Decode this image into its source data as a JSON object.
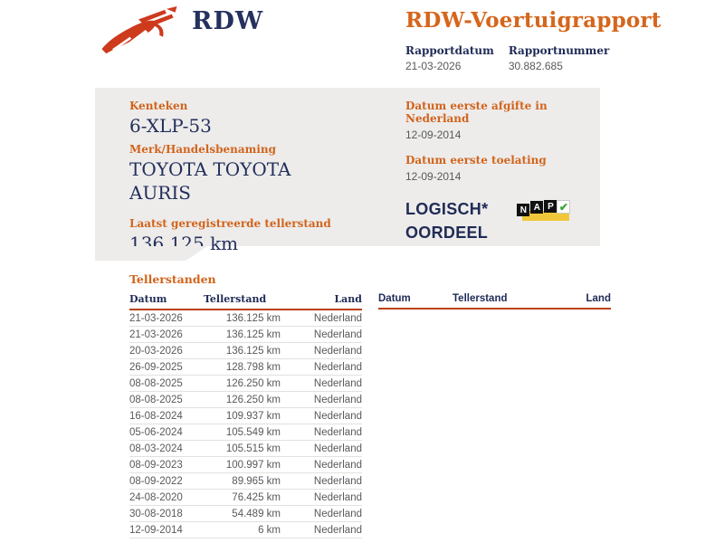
{
  "header": {
    "logo_text": "RDW",
    "title": "RDW-Voertuigrapport",
    "report_date_label": "Rapportdatum",
    "report_date": "21-03-2026",
    "report_number_label": "Rapportnummer",
    "report_number": "30.882.685"
  },
  "summary": {
    "kenteken_label": "Kenteken",
    "kenteken": "6-XLP-53",
    "merk_label": "Merk/Handelsbenaming",
    "merk": "TOYOTA TOYOTA AURIS",
    "tellerstand_label": "Laatst geregistreerde tellerstand",
    "tellerstand": "136.125 km",
    "afgifte_label": "Datum eerste afgifte in Nederland",
    "afgifte": "12-09-2014",
    "toelating_label": "Datum eerste toelating",
    "toelating": "12-09-2014",
    "oordeel_line1": "LOGISCH*",
    "oordeel_line2": "OORDEEL",
    "nap": {
      "n": "N",
      "a": "A",
      "p": "P",
      "check": "✔"
    }
  },
  "tellerstanden": {
    "section_title": "Tellerstanden",
    "columns": [
      "Datum",
      "Tellerstand",
      "Land"
    ],
    "columns_right": [
      "Datum",
      "Tellerstand",
      "Land"
    ],
    "rows": [
      {
        "datum": "21-03-2026",
        "tellerstand": "136.125 km",
        "land": "Nederland"
      },
      {
        "datum": "21-03-2026",
        "tellerstand": "136.125 km",
        "land": "Nederland"
      },
      {
        "datum": "20-03-2026",
        "tellerstand": "136.125 km",
        "land": "Nederland"
      },
      {
        "datum": "26-09-2025",
        "tellerstand": "128.798 km",
        "land": "Nederland"
      },
      {
        "datum": "08-08-2025",
        "tellerstand": "126.250 km",
        "land": "Nederland"
      },
      {
        "datum": "08-08-2025",
        "tellerstand": "126.250 km",
        "land": "Nederland"
      },
      {
        "datum": "16-08-2024",
        "tellerstand": "109.937 km",
        "land": "Nederland"
      },
      {
        "datum": "05-06-2024",
        "tellerstand": "105.549 km",
        "land": "Nederland"
      },
      {
        "datum": "08-03-2024",
        "tellerstand": "105.515 km",
        "land": "Nederland"
      },
      {
        "datum": "08-09-2023",
        "tellerstand": "100.997 km",
        "land": "Nederland"
      },
      {
        "datum": "08-09-2022",
        "tellerstand": "89.965 km",
        "land": "Nederland"
      },
      {
        "datum": "24-08-2020",
        "tellerstand": "76.425 km",
        "land": "Nederland"
      },
      {
        "datum": "30-08-2018",
        "tellerstand": "54.489 km",
        "land": "Nederland"
      },
      {
        "datum": "12-09-2014",
        "tellerstand": "6 km",
        "land": "Nederland"
      }
    ]
  },
  "colors": {
    "brand_orange": "#d5661c",
    "label_orange": "#d2641c",
    "underline_red": "#bc4110",
    "navy": "#1f2b56",
    "logo_red": "#cd3a1c",
    "panel_gray": "#edeceb",
    "text_gray": "#58595b",
    "nap_yellow": "#f0c73a",
    "nap_green": "#3aa335"
  }
}
